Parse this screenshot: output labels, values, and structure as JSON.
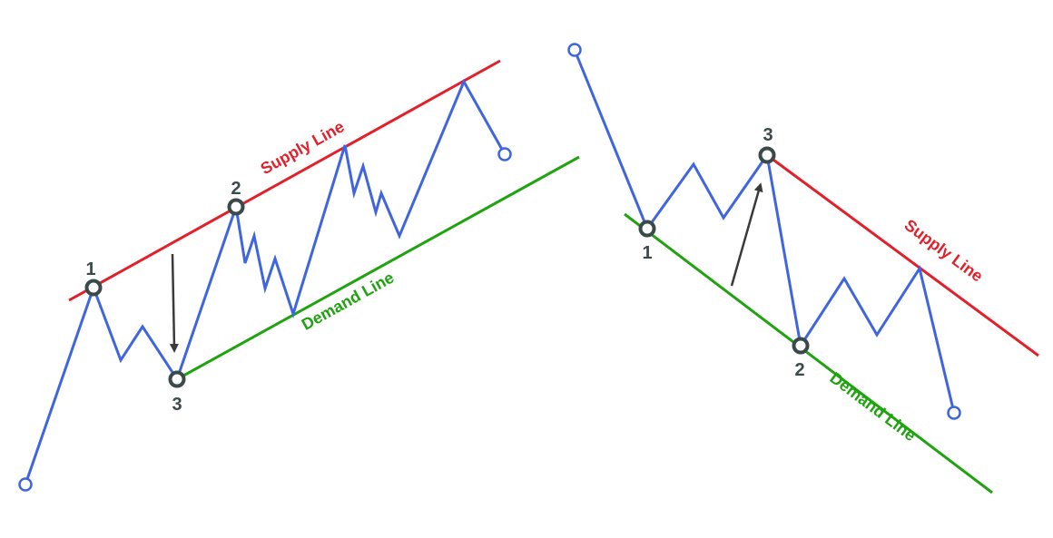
{
  "colors": {
    "price": "#3f66e0",
    "supply": "#e3202a",
    "demand": "#1fa30f",
    "pivot": "#3a4a4a",
    "arrow": "#3a3a3a",
    "background": "#ffffff"
  },
  "left_channel": {
    "direction": "ascending",
    "supply_label": "Supply Line",
    "demand_label": "Demand Line",
    "pivots": [
      "1",
      "2",
      "3"
    ]
  },
  "right_channel": {
    "direction": "descending",
    "supply_label": "Supply Line",
    "demand_label": "Demand Line",
    "pivots": [
      "1",
      "2",
      "3"
    ]
  }
}
